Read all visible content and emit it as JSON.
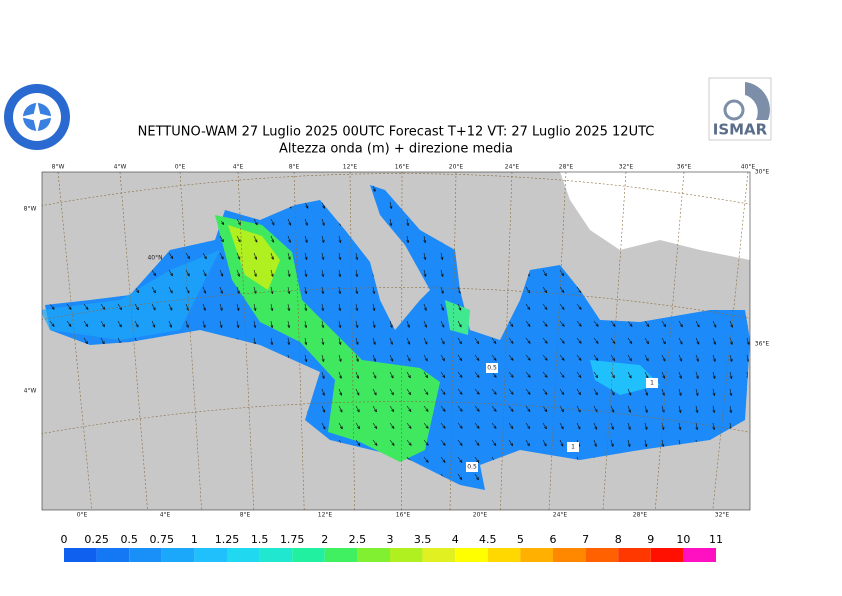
{
  "header": {
    "title": "NETTUNO-WAM  27  Luglio   2025 00UTC Forecast T+12 VT: 27  Luglio   2025 12UTC",
    "subtitle": "Altezza onda (m) + direzione media",
    "logo_right": "ISMAR"
  },
  "map": {
    "top_labels": [
      "8°W",
      "4°W",
      "0°E",
      "4°E",
      "8°E",
      "12°E",
      "16°E",
      "20°E",
      "24°E",
      "28°E",
      "32°E",
      "36°E",
      "40°E"
    ],
    "bottom_labels": [
      "0°E",
      "4°E",
      "8°E",
      "12°E",
      "16°E",
      "20°E",
      "24°E",
      "28°E",
      "32°E"
    ],
    "side_labels": [
      "8°W",
      "4°W",
      "40°N",
      "30°E",
      "36°E"
    ],
    "contour_labels": [
      "0.5",
      "1",
      "0.5",
      "1"
    ]
  },
  "colorbar": {
    "labels": [
      "0",
      "0.25",
      "0.5",
      "0.75",
      "1",
      "1.25",
      "1.5",
      "1.75",
      "2",
      "2.5",
      "3",
      "3.5",
      "4",
      "4.5",
      "5",
      "6",
      "7",
      "8",
      "9",
      "10",
      "11"
    ],
    "colors": [
      "#1060f0",
      "#1478f5",
      "#1890f8",
      "#1ca8fa",
      "#20c0fc",
      "#20d8f0",
      "#20e8d0",
      "#20f0a0",
      "#40f060",
      "#80f030",
      "#b0f020",
      "#e0f020",
      "#ffff00",
      "#ffd800",
      "#ffb000",
      "#ff8800",
      "#ff6000",
      "#ff3800",
      "#ff1000",
      "#ff10c0"
    ]
  }
}
